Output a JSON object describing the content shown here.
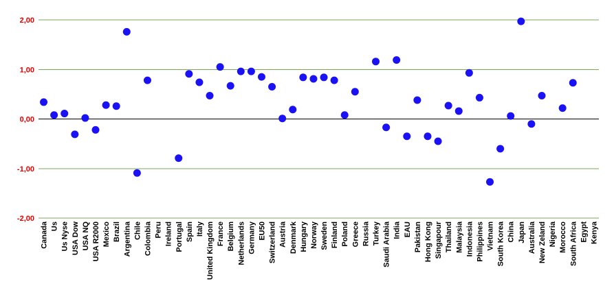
{
  "chart_data": {
    "type": "scatter",
    "title": "",
    "xlabel": "",
    "ylabel": "",
    "ylim": [
      -2,
      2
    ],
    "yticks": [
      2,
      1,
      0,
      -1,
      -2
    ],
    "ytick_labels": [
      "2,00",
      "1,00",
      "0,00",
      "-1,00",
      "-2,00"
    ],
    "grid": "horizontal",
    "colors": {
      "marker": "#1a12f5",
      "gridline": "#77aa55",
      "zero_line": "#000000",
      "ytick_text": "#e00000"
    },
    "categories": [
      "Canada",
      "Us",
      "Us Nyse",
      "USA Dow",
      "USA NQ",
      "USA R2000",
      "Mexico",
      "Brazil",
      "Argentina",
      "Chile",
      "Colombia",
      "Peru",
      "Ireland",
      "Portugal",
      "Spain",
      "Italy",
      "United Kingdom",
      "France",
      "Belgium",
      "Netherlands",
      "Germany",
      "EU50",
      "Switzerland",
      "Austria",
      "Denmark",
      "Hungary",
      "Norway",
      "Sweden",
      "Finland",
      "Poland",
      "Greece",
      "Russia",
      "Turkey",
      "Saudi Arabia",
      "India",
      "EAU",
      "Pakistan",
      "Hong Kong",
      "Singapour",
      "Thailand",
      "Malaysia",
      "Indonesia",
      "Philippines",
      "Vietnam",
      "South Korea",
      "China",
      "Japan",
      "Australia",
      "New Zeland",
      "Nigeria",
      "Morocco",
      "South Africa",
      "Egypt",
      "Kenya"
    ],
    "values": [
      0.34,
      0.08,
      0.11,
      -0.31,
      0.02,
      -0.22,
      0.28,
      0.26,
      1.76,
      -1.09,
      0.78,
      null,
      null,
      -0.79,
      0.91,
      0.74,
      0.47,
      1.05,
      0.67,
      0.96,
      0.96,
      0.85,
      0.65,
      0.01,
      0.19,
      0.84,
      0.81,
      0.84,
      0.78,
      0.08,
      0.55,
      null,
      1.16,
      -0.17,
      1.19,
      -0.35,
      0.38,
      -0.35,
      -0.45,
      0.27,
      0.16,
      0.93,
      0.43,
      -1.27,
      -0.6,
      0.06,
      1.97,
      -0.1,
      0.47,
      null,
      0.22,
      0.73,
      null,
      null
    ]
  }
}
